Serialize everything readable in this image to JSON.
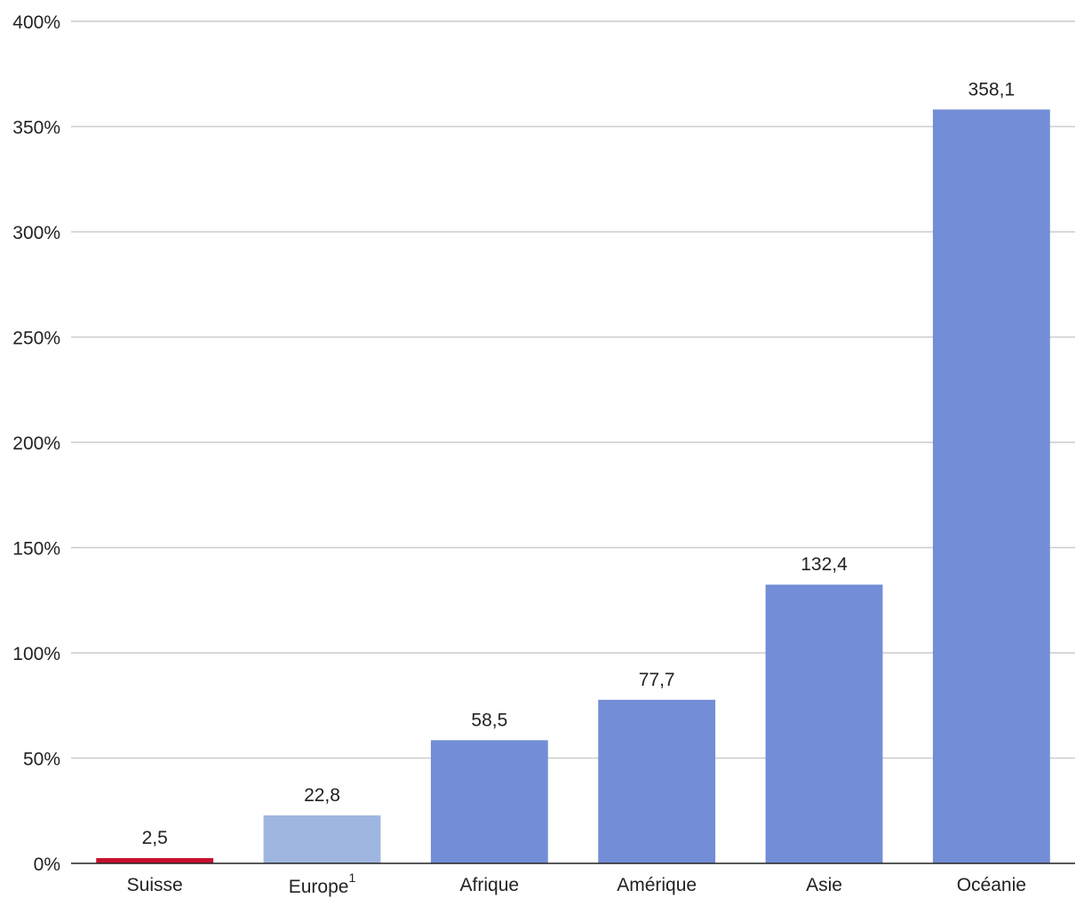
{
  "chart_data": {
    "type": "bar",
    "title": "",
    "xlabel": "",
    "ylabel": "",
    "ylim": [
      0,
      400
    ],
    "y_ticks": [
      0,
      50,
      100,
      150,
      200,
      250,
      300,
      350,
      400
    ],
    "y_tick_labels": [
      "0%",
      "50%",
      "100%",
      "150%",
      "200%",
      "250%",
      "300%",
      "350%",
      "400%"
    ],
    "grid": true,
    "categories": [
      {
        "label": "Suisse",
        "sup": ""
      },
      {
        "label": "Europe",
        "sup": "1"
      },
      {
        "label": "Afrique",
        "sup": ""
      },
      {
        "label": "Amérique",
        "sup": ""
      },
      {
        "label": "Asie",
        "sup": ""
      },
      {
        "label": "Océanie",
        "sup": ""
      }
    ],
    "values": [
      2.5,
      22.8,
      58.5,
      77.7,
      132.4,
      358.1
    ],
    "value_labels": [
      "2,5",
      "22,8",
      "58,5",
      "77,7",
      "132,4",
      "358,1"
    ],
    "colors": [
      "#c8102e",
      "#9fb6e0",
      "#738dd6",
      "#738dd6",
      "#738dd6",
      "#738dd6"
    ]
  }
}
